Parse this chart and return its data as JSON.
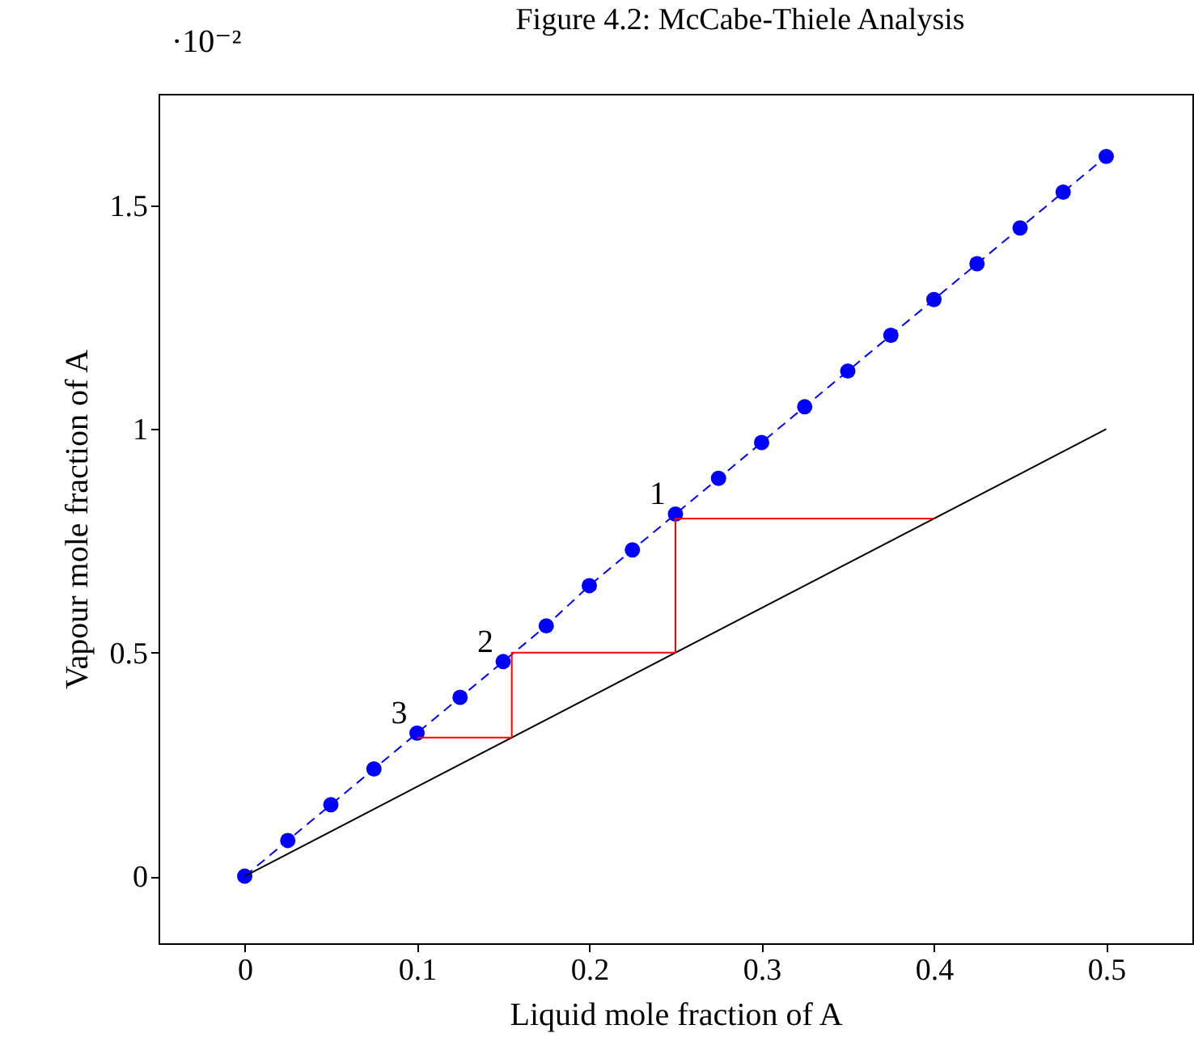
{
  "chart_data": {
    "type": "line",
    "title": "Figure 4.2: McCabe-Thiele Analysis",
    "xlabel": "Liquid mole fraction of A",
    "ylabel": "Vapour mole fraction of A",
    "xlim": [
      -0.05,
      0.55
    ],
    "xticks": [
      0,
      0.1,
      0.2,
      0.3,
      0.4,
      0.5
    ],
    "ylim": [
      -0.15,
      1.75
    ],
    "yticks": [
      0,
      0.5,
      1,
      1.5
    ],
    "grid": false,
    "series": [
      {
        "color": "#0000ff",
        "marker": "circle",
        "line_style": "dashed",
        "x": [
          0,
          0.025,
          0.05,
          0.075,
          0.1,
          0.125,
          0.15,
          0.175,
          0.2,
          0.225,
          0.25,
          0.275,
          0.3,
          0.325,
          0.35,
          0.375,
          0.4,
          0.425,
          0.45,
          0.475,
          0.5
        ],
        "values": [
          0,
          0.08,
          0.16,
          0.24,
          0.32,
          0.4,
          0.48,
          0.56,
          0.65,
          0.73,
          0.81,
          0.89,
          0.97,
          1.05,
          1.13,
          1.21,
          1.29,
          1.37,
          1.45,
          1.53,
          1.61
        ]
      },
      {
        "color": "#000000",
        "marker": "none",
        "line_style": "solid",
        "x": [
          0,
          0.5
        ],
        "values": [
          0,
          1.0
        ]
      },
      {
        "color": "#ff0000",
        "marker": "none",
        "line_style": "solid",
        "x": [
          0.4,
          0.25,
          0.25,
          0.155,
          0.155,
          0.1
        ],
        "values": [
          0.8,
          0.8,
          0.5,
          0.5,
          0.31,
          0.31
        ]
      }
    ],
    "annotations": [
      "·10⁻²",
      {
        "text": "1",
        "x": 0.25,
        "y": 0.81
      },
      {
        "text": "2",
        "x": 0.15,
        "y": 0.48
      },
      {
        "text": "3",
        "x": 0.1,
        "y": 0.32
      }
    ]
  }
}
